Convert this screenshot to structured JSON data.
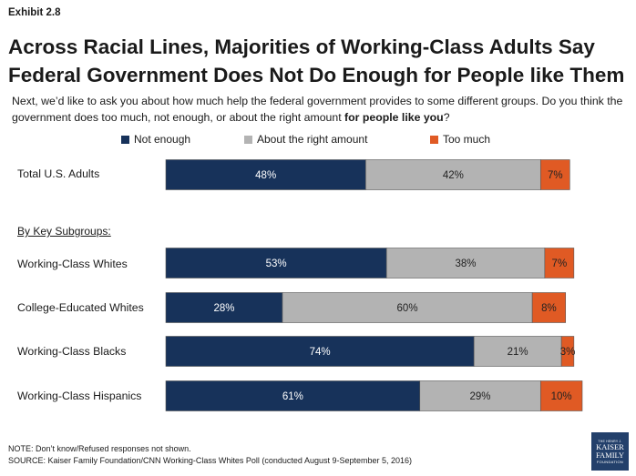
{
  "exhibit": "Exhibit 2.8",
  "title": {
    "line1": "Across Racial Lines, Majorities of Working-Class Adults Say",
    "line2": "Federal Government Does Not Do Enough for People like Them"
  },
  "question": {
    "text": "Next, we’d like to ask you about how much help the federal government provides to some different groups. Do you think the government does too much, not enough, or about the right amount ",
    "emphasis": "for people like you",
    "end": "?"
  },
  "subgroups_heading": "By Key Subgroups:",
  "colors": {
    "not_enough": "#17325a",
    "about_right": "#b3b3b3",
    "too_much": "#e05a24"
  },
  "chart_data": {
    "type": "bar",
    "orientation": "horizontal",
    "stacked": true,
    "categories": [
      "Total U.S. Adults",
      "Working-Class Whites",
      "College-Educated Whites",
      "Working-Class Blacks",
      "Working-Class Hispanics"
    ],
    "series": [
      {
        "name": "Not enough",
        "values": [
          48,
          53,
          28,
          74,
          61
        ],
        "labels": [
          "48%",
          "53%",
          "28%",
          "74%",
          "61%"
        ]
      },
      {
        "name": "About the right amount",
        "values": [
          42,
          38,
          60,
          21,
          29
        ],
        "labels": [
          "42%",
          "38%",
          "60%",
          "21%",
          "29%"
        ]
      },
      {
        "name": "Too much",
        "values": [
          7,
          7,
          8,
          3,
          10
        ],
        "labels": [
          "7%",
          "7%",
          "8%",
          "3%",
          "10%"
        ]
      }
    ],
    "legend_position": "top"
  },
  "note": {
    "line1": "NOTE: Don’t know/Refused responses not shown.",
    "line2": "SOURCE: Kaiser Family Foundation/CNN Working-Class Whites Poll (conducted August 9-September 5, 2016)"
  },
  "logo": {
    "line1": "THE HENRY J.",
    "line2": "KAISER",
    "line3": "FAMILY",
    "line4": "FOUNDATION"
  }
}
